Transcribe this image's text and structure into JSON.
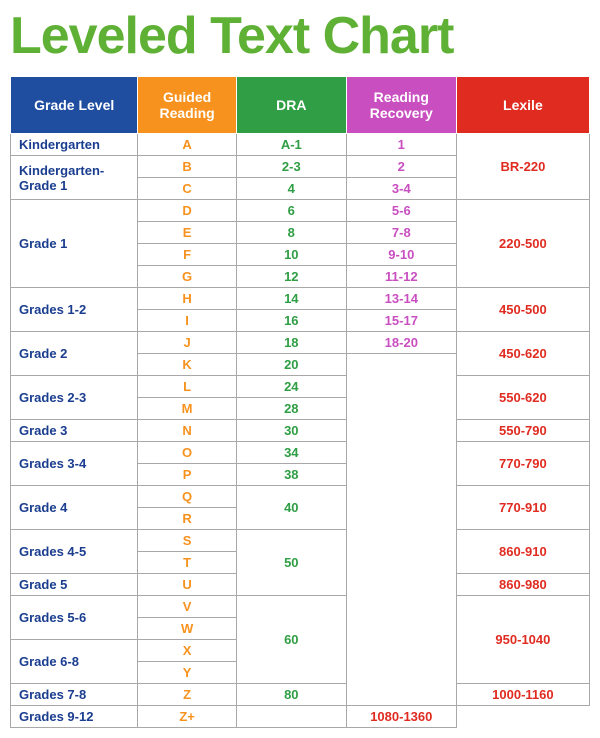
{
  "title": "Leveled Text Chart",
  "title_color": "#5eb135",
  "columns": [
    {
      "key": "grade",
      "label": "Grade Level",
      "bg": "#1f4ea1"
    },
    {
      "key": "gr",
      "label": "Guided Reading",
      "bg": "#f7921e"
    },
    {
      "key": "dra",
      "label": "DRA",
      "bg": "#2f9e44"
    },
    {
      "key": "rr",
      "label": "Reading Recovery",
      "bg": "#c94fc1"
    },
    {
      "key": "lex",
      "label": "Lexile",
      "bg": "#e02b20"
    }
  ],
  "col_text_colors": {
    "grade": "#1a3d8f",
    "gr": "#f7921e",
    "dra": "#2f9e44",
    "rr": "#c94fc1",
    "lex": "#e02b20"
  },
  "rows": [
    {
      "grade": "Kindergarten",
      "gr": "A",
      "dra": "A-1",
      "rr": "1",
      "lex": {
        "text": "BR-220",
        "rowspan": 3
      }
    },
    {
      "grade": {
        "text": "Kindergarten-Grade 1",
        "rowspan": 2
      },
      "gr": "B",
      "dra": "2-3",
      "rr": "2"
    },
    {
      "gr": "C",
      "dra": "4",
      "rr": "3-4"
    },
    {
      "grade": {
        "text": "Grade 1",
        "rowspan": 4
      },
      "gr": "D",
      "dra": "6",
      "rr": "5-6",
      "lex": {
        "text": "220-500",
        "rowspan": 4
      }
    },
    {
      "gr": "E",
      "dra": "8",
      "rr": "7-8"
    },
    {
      "gr": "F",
      "dra": "10",
      "rr": "9-10"
    },
    {
      "gr": "G",
      "dra": "12",
      "rr": "11-12"
    },
    {
      "grade": {
        "text": "Grades 1-2",
        "rowspan": 2
      },
      "gr": "H",
      "dra": "14",
      "rr": "13-14",
      "lex": {
        "text": "450-500",
        "rowspan": 2
      }
    },
    {
      "gr": "I",
      "dra": "16",
      "rr": "15-17"
    },
    {
      "grade": {
        "text": "Grade 2",
        "rowspan": 2
      },
      "gr": "J",
      "dra": "18",
      "rr": "18-20",
      "lex": {
        "text": "450-620",
        "rowspan": 2
      }
    },
    {
      "gr": "K",
      "dra": "20",
      "rr": {
        "text": "",
        "rowspan": 16
      }
    },
    {
      "grade": {
        "text": "Grades 2-3",
        "rowspan": 2
      },
      "gr": "L",
      "dra": "24",
      "lex": {
        "text": "550-620",
        "rowspan": 2
      }
    },
    {
      "gr": "M",
      "dra": "28"
    },
    {
      "grade": "Grade 3",
      "gr": "N",
      "dra": "30",
      "lex": "550-790"
    },
    {
      "grade": {
        "text": "Grades 3-4",
        "rowspan": 2
      },
      "gr": "O",
      "dra": "34",
      "lex": {
        "text": "770-790",
        "rowspan": 2
      }
    },
    {
      "gr": "P",
      "dra": "38"
    },
    {
      "grade": {
        "text": "Grade 4",
        "rowspan": 2
      },
      "gr": "Q",
      "dra": {
        "text": "40",
        "rowspan": 2
      },
      "lex": {
        "text": "770-910",
        "rowspan": 2
      }
    },
    {
      "gr": "R"
    },
    {
      "grade": {
        "text": "Grades 4-5",
        "rowspan": 2
      },
      "gr": "S",
      "dra": {
        "text": "50",
        "rowspan": 3
      },
      "lex": {
        "text": "860-910",
        "rowspan": 2
      }
    },
    {
      "gr": "T"
    },
    {
      "grade": "Grade 5",
      "gr": "U",
      "lex": "860-980"
    },
    {
      "grade": {
        "text": "Grades 5-6",
        "rowspan": 2
      },
      "gr": "V",
      "dra": {
        "text": "60",
        "rowspan": 4
      },
      "lex": {
        "text": "950-1040",
        "rowspan": 4
      }
    },
    {
      "gr": "W"
    },
    {
      "grade": {
        "text": "Grade 6-8",
        "rowspan": 2
      },
      "gr": "X"
    },
    {
      "gr": "Y"
    },
    {
      "grade": "Grades 7-8",
      "gr": "Z",
      "dra": "80",
      "lex": "1000-1160"
    },
    {
      "grade": "Grades 9-12",
      "gr": "Z+",
      "dra": "",
      "lex": "1080-1360"
    }
  ]
}
